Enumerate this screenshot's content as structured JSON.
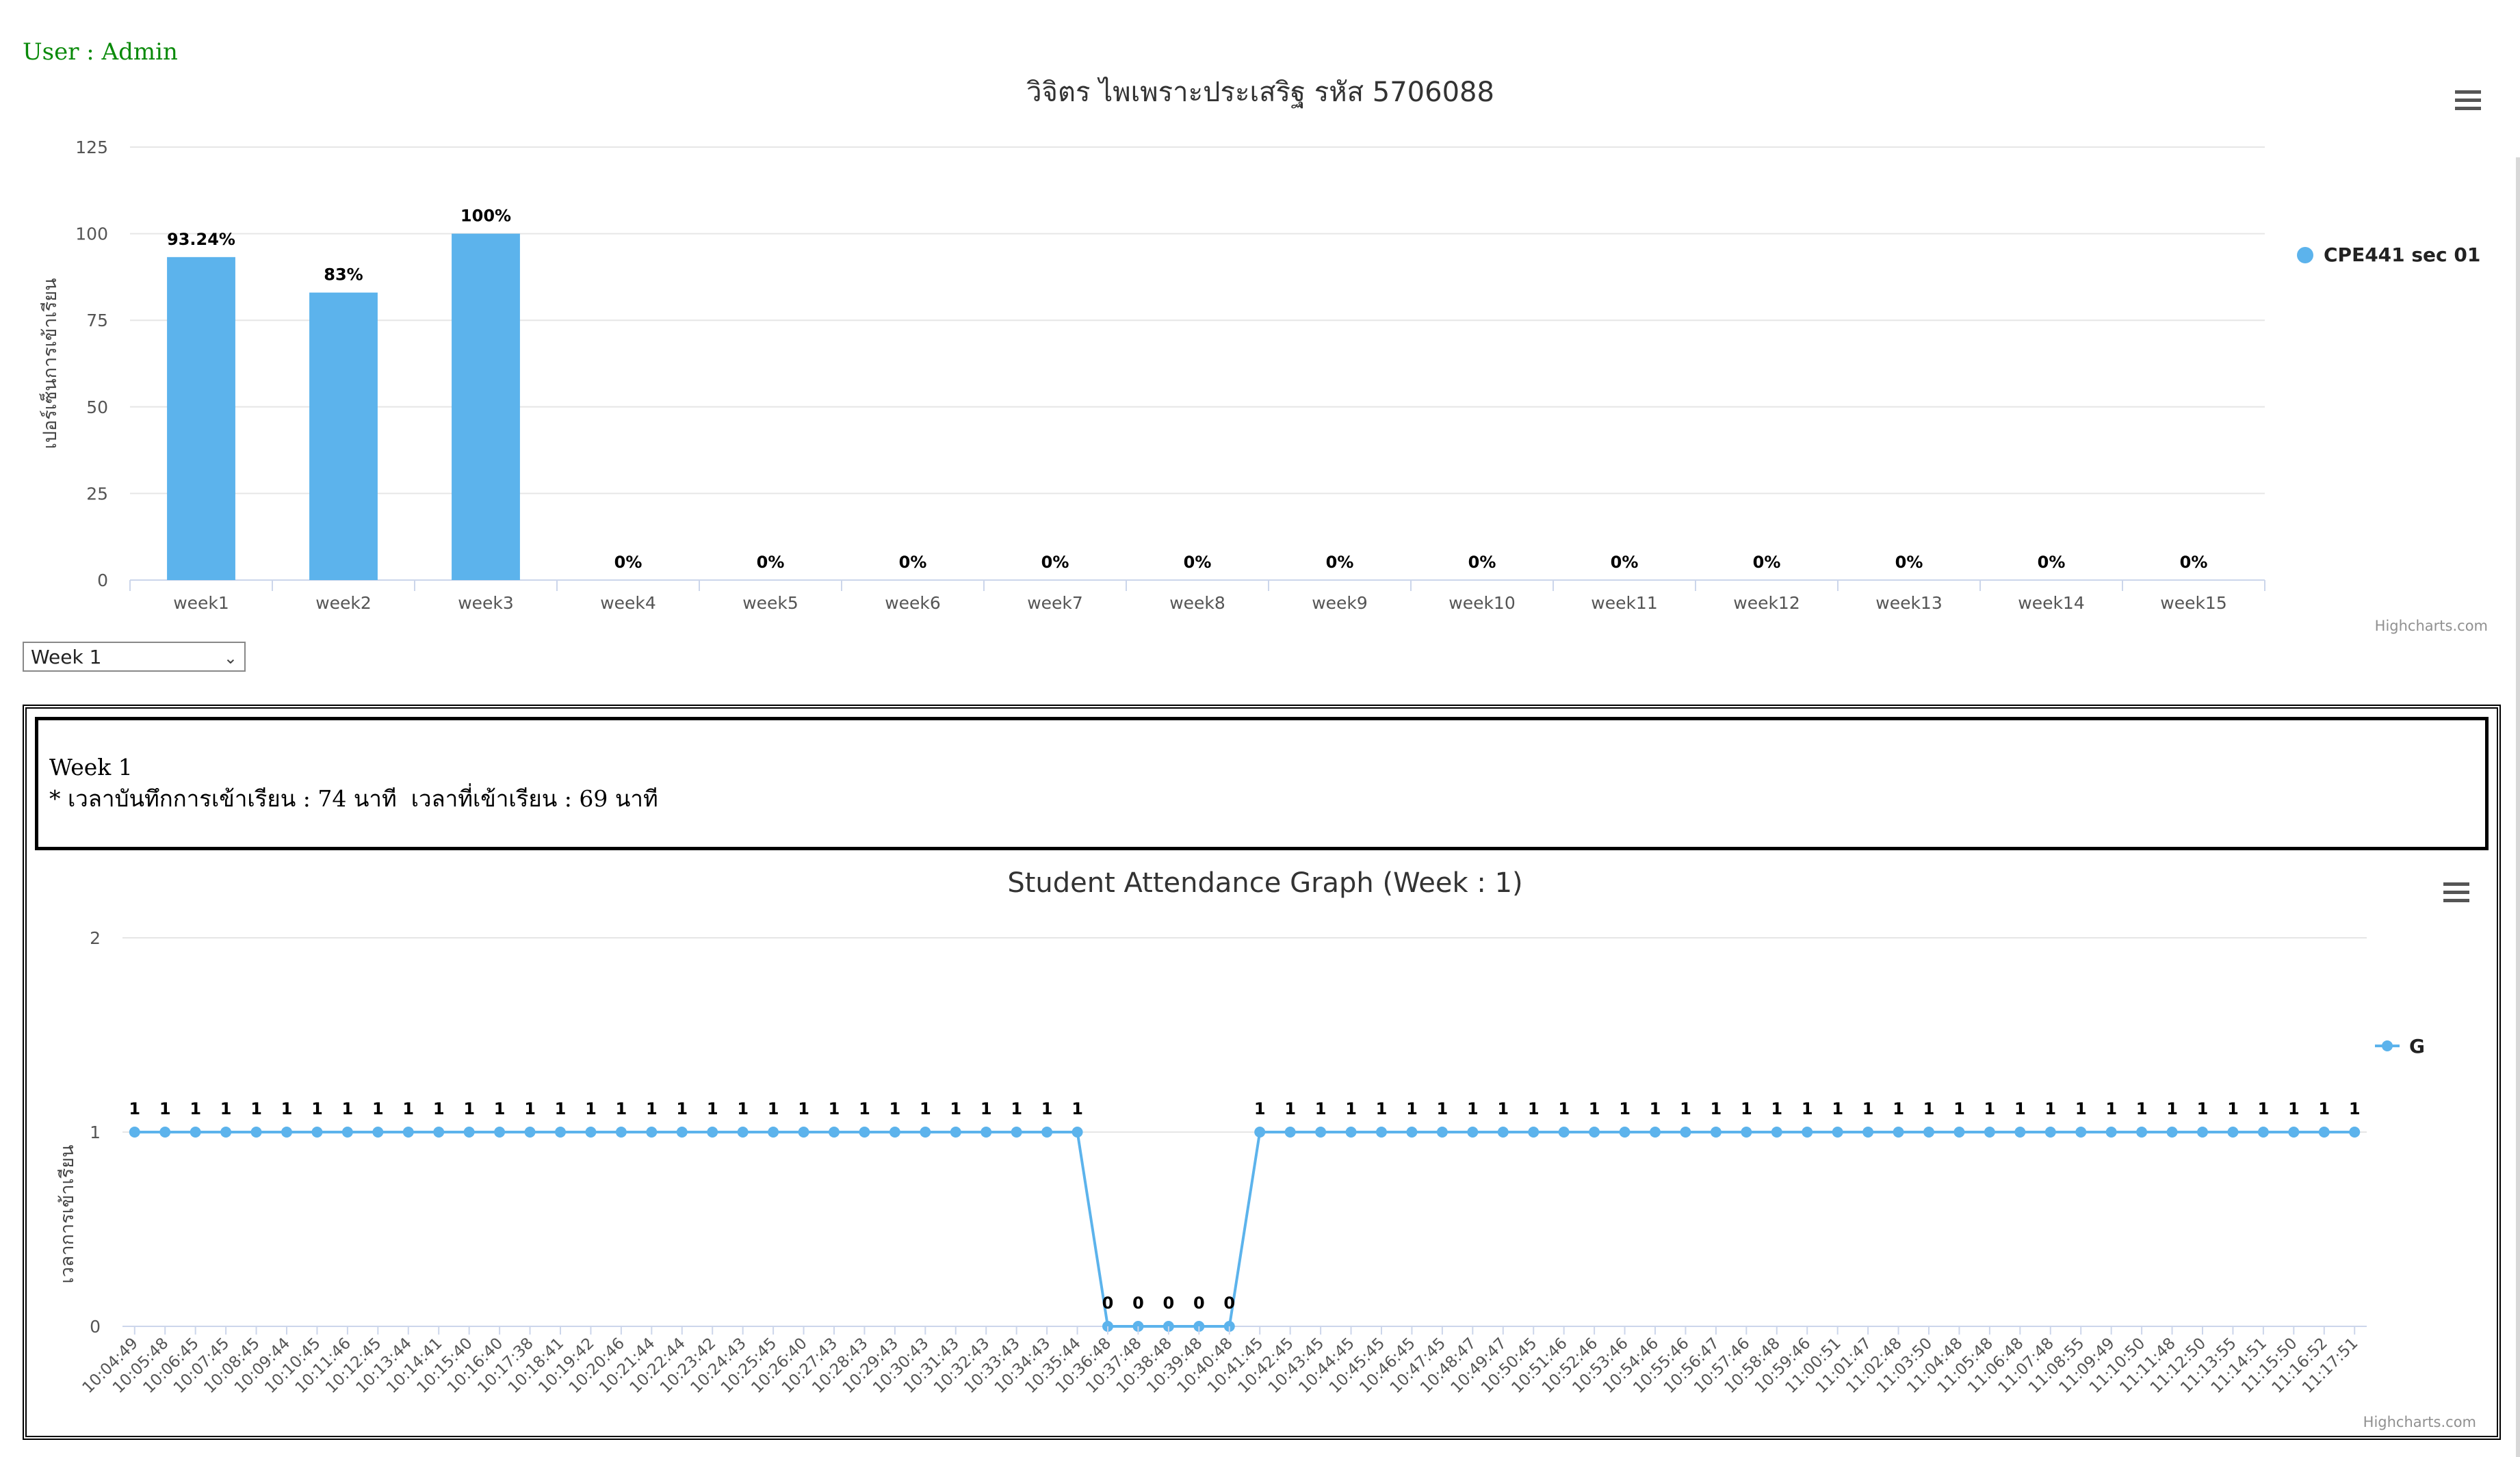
{
  "header": {
    "user_label": "User : Admin"
  },
  "chart1": {
    "title": "วิจิตร ไพเพราะประเสริฐ รหัส 5706088",
    "credits": "Highcharts.com",
    "menu_icon": "hamburger-menu-icon",
    "legend_position": "right",
    "accent_color": "#5cb3ec"
  },
  "week_select": {
    "value": "Week 1"
  },
  "info": {
    "week_label": "Week 1",
    "summary": "* เวลาบันทึกการเข้าเรียน : 74 นาที  เวลาที่เข้าเรียน : 69 นาที"
  },
  "chart2": {
    "title": "Student Attendance Graph (Week : 1)",
    "credits": "Highcharts.com",
    "menu_icon": "hamburger-menu-icon",
    "legend_position": "right",
    "accent_color": "#5cb3ec"
  },
  "chart_data": [
    {
      "type": "bar",
      "title": "วิจิตร ไพเพราะประเสริฐ รหัส 5706088",
      "ylabel": "เปอร์เซ็นการเข้าเรียน",
      "ylim": [
        0,
        125
      ],
      "yticks": [
        0,
        25,
        50,
        75,
        100,
        125
      ],
      "grid": true,
      "legend": "right",
      "categories": [
        "week1",
        "week2",
        "week3",
        "week4",
        "week5",
        "week6",
        "week7",
        "week8",
        "week9",
        "week10",
        "week11",
        "week12",
        "week13",
        "week14",
        "week15"
      ],
      "series": [
        {
          "name": "CPE441 sec 01",
          "values": [
            93.24,
            83,
            100,
            0,
            0,
            0,
            0,
            0,
            0,
            0,
            0,
            0,
            0,
            0,
            0
          ],
          "labels": [
            "93.24%",
            "83%",
            "100%",
            "0%",
            "0%",
            "0%",
            "0%",
            "0%",
            "0%",
            "0%",
            "0%",
            "0%",
            "0%",
            "0%",
            "0%"
          ]
        }
      ]
    },
    {
      "type": "line",
      "title": "Student Attendance Graph (Week : 1)",
      "ylabel": "เวลาการเข้าเรียน",
      "ylim": [
        0,
        2
      ],
      "yticks": [
        0,
        1,
        2
      ],
      "grid": true,
      "legend": "right",
      "categories": [
        "10:04:49",
        "10:05:48",
        "10:06:45",
        "10:07:45",
        "10:08:45",
        "10:09:44",
        "10:10:45",
        "10:11:46",
        "10:12:45",
        "10:13:44",
        "10:14:41",
        "10:15:40",
        "10:16:40",
        "10:17:38",
        "10:18:41",
        "10:19:42",
        "10:20:46",
        "10:21:44",
        "10:22:44",
        "10:23:42",
        "10:24:43",
        "10:25:45",
        "10:26:40",
        "10:27:43",
        "10:28:43",
        "10:29:43",
        "10:30:43",
        "10:31:43",
        "10:32:43",
        "10:33:43",
        "10:34:43",
        "10:35:44",
        "10:36:48",
        "10:37:48",
        "10:38:48",
        "10:39:48",
        "10:40:48",
        "10:41:45",
        "10:42:45",
        "10:43:45",
        "10:44:45",
        "10:45:45",
        "10:46:45",
        "10:47:45",
        "10:48:47",
        "10:49:47",
        "10:50:45",
        "10:51:46",
        "10:52:46",
        "10:53:46",
        "10:54:46",
        "10:55:46",
        "10:56:47",
        "10:57:46",
        "10:58:48",
        "10:59:46",
        "11:00:51",
        "11:01:47",
        "11:02:48",
        "11:03:50",
        "11:04:48",
        "11:05:48",
        "11:06:48",
        "11:07:48",
        "11:08:55",
        "11:09:49",
        "11:10:50",
        "11:11:48",
        "11:12:50",
        "11:13:55",
        "11:14:51",
        "11:15:50",
        "11:16:52",
        "11:17:51"
      ],
      "series": [
        {
          "name": "G",
          "values": [
            1,
            1,
            1,
            1,
            1,
            1,
            1,
            1,
            1,
            1,
            1,
            1,
            1,
            1,
            1,
            1,
            1,
            1,
            1,
            1,
            1,
            1,
            1,
            1,
            1,
            1,
            1,
            1,
            1,
            1,
            1,
            1,
            0,
            0,
            0,
            0,
            0,
            1,
            1,
            1,
            1,
            1,
            1,
            1,
            1,
            1,
            1,
            1,
            1,
            1,
            1,
            1,
            1,
            1,
            1,
            1,
            1,
            1,
            1,
            1,
            1,
            1,
            1,
            1,
            1,
            1,
            1,
            1,
            1,
            1,
            1,
            1,
            1,
            1
          ]
        }
      ]
    }
  ]
}
